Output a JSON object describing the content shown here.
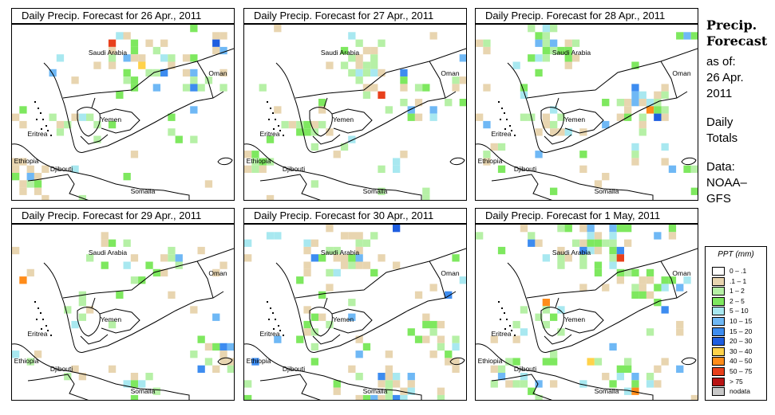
{
  "panels": [
    {
      "title": "Daily Precip. Forecast for  26 Apr., 2011"
    },
    {
      "title": "Daily Precip. Forecast for  27 Apr., 2011"
    },
    {
      "title": "Daily Precip. Forecast for  28 Apr., 2011"
    },
    {
      "title": "Daily Precip. Forecast for  29 Apr., 2011"
    },
    {
      "title": "Daily Precip. Forecast for  30 Apr., 2011"
    },
    {
      "title": "Daily Precip. Forecast for  1 May, 2011"
    }
  ],
  "map_labels": {
    "saudi": "Saudi Arabia",
    "oman": "Oman",
    "yemen": "Yemen",
    "eritrea": "Eritrea",
    "ethiopia": "Ethiopia",
    "djibouti": "Djibouti",
    "somalia": "Somalia"
  },
  "sidebar": {
    "title_line1": "Precip.",
    "title_line2": "Forecast",
    "asof_line1": "as of:",
    "asof_line2": "26 Apr.",
    "asof_line3": "2011",
    "totals_line1": "Daily",
    "totals_line2": "Totals",
    "data_line1": "Data:",
    "data_line2": "NOAA–",
    "data_line3": "GFS"
  },
  "legend": {
    "title": "PPT (mm)",
    "items": [
      {
        "label": "0 – .1",
        "color": "#ffffff"
      },
      {
        "label": ".1 – 1",
        "color": "#e8d5b0"
      },
      {
        "label": "1 – 2",
        "color": "#b6f0a6"
      },
      {
        "label": "2 – 5",
        "color": "#7ee85f"
      },
      {
        "label": "5 – 10",
        "color": "#a8e8f0"
      },
      {
        "label": "10 – 15",
        "color": "#6fb8f5"
      },
      {
        "label": "15 – 20",
        "color": "#3d8cf0"
      },
      {
        "label": "20 – 30",
        "color": "#1f5ee0"
      },
      {
        "label": "30 – 40",
        "color": "#ffd24a"
      },
      {
        "label": "40 – 50",
        "color": "#ff8c1a"
      },
      {
        "label": "50 – 75",
        "color": "#e8401c"
      },
      {
        "label": "> 75",
        "color": "#b81414"
      },
      {
        "label": "nodata",
        "color": "#c8c8c8"
      }
    ]
  }
}
